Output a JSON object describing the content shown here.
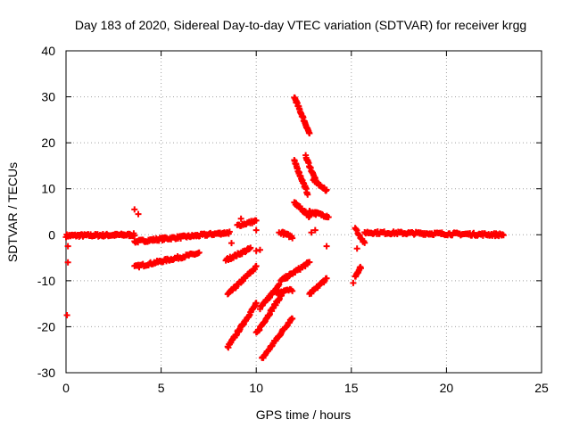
{
  "chart_data": {
    "type": "scatter",
    "title": "Day 183 of 2020, Sidereal Day-to-day VTEC variation (SDTVAR) for receiver krgg",
    "xlabel": "GPS time / hours",
    "ylabel": "SDTVAR / TECUs",
    "xlim": [
      0,
      25
    ],
    "ylim": [
      -30,
      40
    ],
    "xticks": [
      0,
      5,
      10,
      15,
      20,
      25
    ],
    "yticks": [
      -30,
      -20,
      -10,
      0,
      10,
      20,
      30,
      40
    ],
    "grid": true,
    "marker": "+",
    "color": "#ff0000",
    "segments": [
      {
        "x0": 0.0,
        "y0": -0.2,
        "x1": 3.6,
        "y1": 0.0,
        "n": 90
      },
      {
        "x0": 3.6,
        "y0": -1.5,
        "x1": 8.6,
        "y1": 0.5,
        "n": 110
      },
      {
        "x0": 3.6,
        "y0": -7.0,
        "x1": 7.0,
        "y1": -4.0,
        "n": 70
      },
      {
        "x0": 8.5,
        "y0": -13.0,
        "x1": 10.0,
        "y1": -7.0,
        "n": 40
      },
      {
        "x0": 8.4,
        "y0": -5.5,
        "x1": 9.7,
        "y1": -3.0,
        "n": 30
      },
      {
        "x0": 9.0,
        "y0": 2.0,
        "x1": 10.0,
        "y1": 3.0,
        "n": 20
      },
      {
        "x0": 8.5,
        "y0": -24.5,
        "x1": 10.0,
        "y1": -15.0,
        "n": 45
      },
      {
        "x0": 10.0,
        "y0": -21.5,
        "x1": 11.5,
        "y1": -12.0,
        "n": 45
      },
      {
        "x0": 10.2,
        "y0": -16.0,
        "x1": 11.2,
        "y1": -11.0,
        "n": 30
      },
      {
        "x0": 10.3,
        "y0": -27.0,
        "x1": 11.9,
        "y1": -18.0,
        "n": 45
      },
      {
        "x0": 11.0,
        "y0": -12.5,
        "x1": 11.9,
        "y1": -12.0,
        "n": 15
      },
      {
        "x0": 11.3,
        "y0": -10.0,
        "x1": 12.8,
        "y1": -6.0,
        "n": 35
      },
      {
        "x0": 12.0,
        "y0": 30.0,
        "x1": 12.8,
        "y1": 22.0,
        "n": 35
      },
      {
        "x0": 12.0,
        "y0": 16.0,
        "x1": 12.7,
        "y1": 9.0,
        "n": 30
      },
      {
        "x0": 12.6,
        "y0": 17.0,
        "x1": 13.1,
        "y1": 12.0,
        "n": 20
      },
      {
        "x0": 12.0,
        "y0": 7.0,
        "x1": 12.8,
        "y1": 4.0,
        "n": 25
      },
      {
        "x0": 12.8,
        "y0": 5.0,
        "x1": 13.8,
        "y1": 4.0,
        "n": 25
      },
      {
        "x0": 13.0,
        "y0": 12.0,
        "x1": 13.7,
        "y1": 9.5,
        "n": 20
      },
      {
        "x0": 12.8,
        "y0": -13.0,
        "x1": 13.7,
        "y1": -9.5,
        "n": 20
      },
      {
        "x0": 11.3,
        "y0": 0.5,
        "x1": 11.9,
        "y1": -0.5,
        "n": 15
      },
      {
        "x0": 15.2,
        "y0": -9.0,
        "x1": 15.5,
        "y1": -7.0,
        "n": 12
      },
      {
        "x0": 15.2,
        "y0": 1.5,
        "x1": 15.7,
        "y1": -2.0,
        "n": 12
      },
      {
        "x0": 15.7,
        "y0": 0.5,
        "x1": 23.0,
        "y1": 0.0,
        "n": 150
      }
    ],
    "points": [
      {
        "x": 0.05,
        "y": -17.5
      },
      {
        "x": 0.1,
        "y": -6.0
      },
      {
        "x": 0.1,
        "y": -2.5
      },
      {
        "x": 3.6,
        "y": 5.5
      },
      {
        "x": 3.8,
        "y": 4.5
      },
      {
        "x": 8.7,
        "y": -1.8
      },
      {
        "x": 9.2,
        "y": 3.5
      },
      {
        "x": 10.0,
        "y": -3.5
      },
      {
        "x": 10.2,
        "y": -3.3
      },
      {
        "x": 10.0,
        "y": 1.0
      },
      {
        "x": 11.2,
        "y": 0.5
      },
      {
        "x": 13.1,
        "y": 1.0
      },
      {
        "x": 13.7,
        "y": -2.5
      },
      {
        "x": 15.1,
        "y": -10.5
      },
      {
        "x": 15.3,
        "y": -3.0
      },
      {
        "x": 12.9,
        "y": 0.5
      }
    ]
  }
}
